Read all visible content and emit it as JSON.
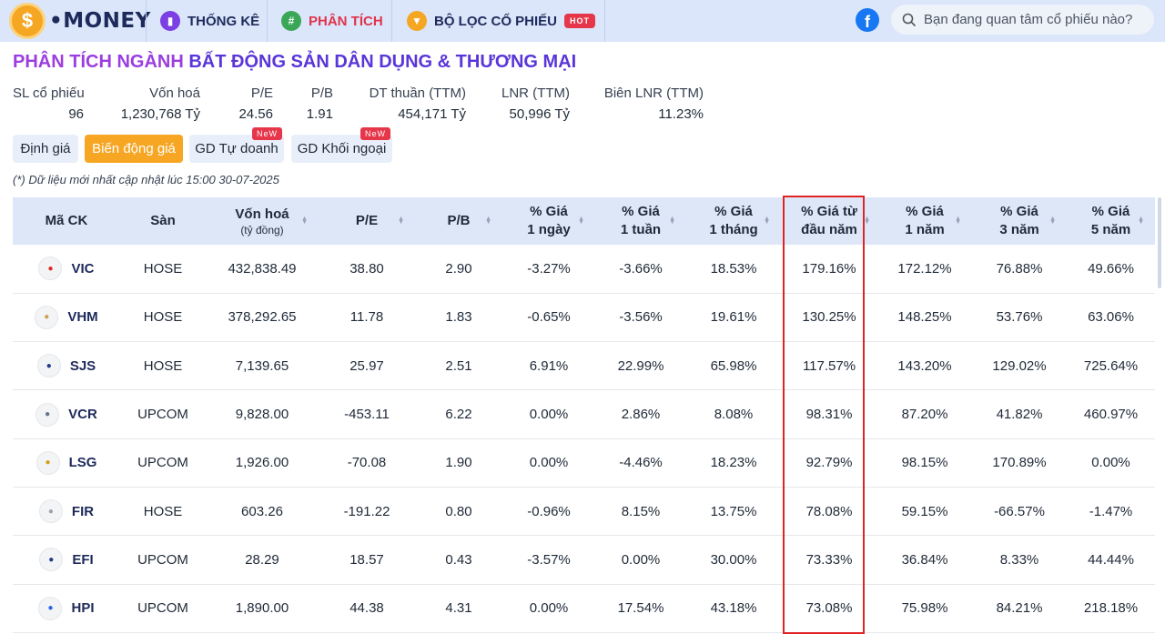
{
  "brand": {
    "coin_letter": "$",
    "name": "•MONEY"
  },
  "nav": [
    {
      "label": "THỐNG KÊ",
      "icon": "bar-chart-icon",
      "color": "#7b3fe4"
    },
    {
      "label": "PHÂN TÍCH",
      "icon": "slack-grid-icon",
      "color": "#3aa757"
    },
    {
      "label": "BỘ LỌC CỔ PHIẾU",
      "icon": "filter-funnel-icon",
      "color": "#f5a623",
      "badge": "HoT"
    }
  ],
  "search": {
    "placeholder": "Bạn đang quan tâm cổ phiếu nào?"
  },
  "page_title": {
    "prefix": "PHÂN TÍCH NGÀNH",
    "sector": "BẤT ĐỘNG SẢN DÂN DỤNG & THƯƠNG MẠI"
  },
  "stats": [
    {
      "label": "SL cổ phiếu",
      "value": "96"
    },
    {
      "label": "Vốn hoá",
      "value": "1,230,768 Tỷ"
    },
    {
      "label": "P/E",
      "value": "24.56"
    },
    {
      "label": "P/B",
      "value": "1.91"
    },
    {
      "label": "DT thuần (TTM)",
      "value": "454,171 Tỷ"
    },
    {
      "label": "LNR (TTM)",
      "value": "50,996 Tỷ"
    },
    {
      "label": "Biên LNR (TTM)",
      "value": "11.23%"
    }
  ],
  "tabs": [
    {
      "label": "Định giá",
      "active": false
    },
    {
      "label": "Biến động giá",
      "active": true
    },
    {
      "label": "GD Tự doanh",
      "active": false,
      "badge": "NeW"
    },
    {
      "label": "GD Khối ngoại",
      "active": false,
      "badge": "NeW"
    }
  ],
  "note": "(*) Dữ liệu mới nhất cập nhật lúc 15:00 30-07-2025",
  "table": {
    "headers": [
      {
        "l1": "Mã CK",
        "l2": ""
      },
      {
        "l1": "Sàn",
        "l2": ""
      },
      {
        "l1": "Vốn hoá",
        "l2": "(tỷ đồng)"
      },
      {
        "l1": "P/E",
        "l2": ""
      },
      {
        "l1": "P/B",
        "l2": ""
      },
      {
        "l1": "% Giá",
        "l2": "1 ngày"
      },
      {
        "l1": "% Giá",
        "l2": "1 tuần"
      },
      {
        "l1": "% Giá",
        "l2": "1 tháng"
      },
      {
        "l1": "% Giá từ",
        "l2": "đầu năm"
      },
      {
        "l1": "% Giá",
        "l2": "1 năm"
      },
      {
        "l1": "% Giá",
        "l2": "3 năm"
      },
      {
        "l1": "% Giá",
        "l2": "5 năm"
      }
    ],
    "rows": [
      {
        "sym": "VIC",
        "exch": "HOSE",
        "cap": "432,838.49",
        "pe": "38.80",
        "pb": "2.90",
        "d1": "-3.27%",
        "w1": "-3.66%",
        "m1": "18.53%",
        "ytd": "179.16%",
        "y1": "172.12%",
        "y3": "76.88%",
        "y5": "49.66%"
      },
      {
        "sym": "VHM",
        "exch": "HOSE",
        "cap": "378,292.65",
        "pe": "11.78",
        "pb": "1.83",
        "d1": "-0.65%",
        "w1": "-3.56%",
        "m1": "19.61%",
        "ytd": "130.25%",
        "y1": "148.25%",
        "y3": "53.76%",
        "y5": "63.06%"
      },
      {
        "sym": "SJS",
        "exch": "HOSE",
        "cap": "7,139.65",
        "pe": "25.97",
        "pb": "2.51",
        "d1": "6.91%",
        "w1": "22.99%",
        "m1": "65.98%",
        "ytd": "117.57%",
        "y1": "143.20%",
        "y3": "129.02%",
        "y5": "725.64%"
      },
      {
        "sym": "VCR",
        "exch": "UPCOM",
        "cap": "9,828.00",
        "pe": "-453.11",
        "pb": "6.22",
        "d1": "0.00%",
        "w1": "2.86%",
        "m1": "8.08%",
        "ytd": "98.31%",
        "y1": "87.20%",
        "y3": "41.82%",
        "y5": "460.97%"
      },
      {
        "sym": "LSG",
        "exch": "UPCOM",
        "cap": "1,926.00",
        "pe": "-70.08",
        "pb": "1.90",
        "d1": "0.00%",
        "w1": "-4.46%",
        "m1": "18.23%",
        "ytd": "92.79%",
        "y1": "98.15%",
        "y3": "170.89%",
        "y5": "0.00%"
      },
      {
        "sym": "FIR",
        "exch": "HOSE",
        "cap": "603.26",
        "pe": "-191.22",
        "pb": "0.80",
        "d1": "-0.96%",
        "w1": "8.15%",
        "m1": "13.75%",
        "ytd": "78.08%",
        "y1": "59.15%",
        "y3": "-66.57%",
        "y5": "-1.47%"
      },
      {
        "sym": "EFI",
        "exch": "UPCOM",
        "cap": "28.29",
        "pe": "18.57",
        "pb": "0.43",
        "d1": "-3.57%",
        "w1": "0.00%",
        "m1": "30.00%",
        "ytd": "73.33%",
        "y1": "36.84%",
        "y3": "8.33%",
        "y5": "44.44%"
      },
      {
        "sym": "HPI",
        "exch": "UPCOM",
        "cap": "1,890.00",
        "pe": "44.38",
        "pb": "4.31",
        "d1": "0.00%",
        "w1": "17.54%",
        "m1": "43.18%",
        "ytd": "73.08%",
        "y1": "75.98%",
        "y3": "84.21%",
        "y5": "218.18%"
      }
    ]
  },
  "colors": {
    "positive": "#22a33a",
    "negative": "#e02424",
    "zero": "#f0a400",
    "accent": "#f6a623",
    "highlight_border": "#e02424"
  }
}
